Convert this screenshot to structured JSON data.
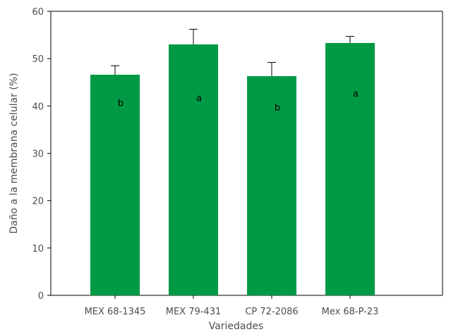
{
  "chart_data": {
    "type": "bar",
    "categories": [
      "MEX 68-1345",
      "MEX 79-431",
      "CP 72-2086",
      "Mex 68-P-23"
    ],
    "values": [
      46.6,
      53.0,
      46.3,
      53.3
    ],
    "error": [
      1.9,
      3.2,
      2.9,
      1.4
    ],
    "letters": [
      "b",
      "a",
      "b",
      "a"
    ],
    "letter_y": [
      40,
      41,
      39,
      42
    ],
    "xlabel": "Variedades",
    "ylabel": "Daño a la membrana celular (%)",
    "ylim": [
      0,
      60
    ],
    "yticks": [
      0,
      10,
      20,
      30,
      40,
      50,
      60
    ],
    "grid": false,
    "bar_color": "#009a44",
    "axis_color": "#000000"
  }
}
